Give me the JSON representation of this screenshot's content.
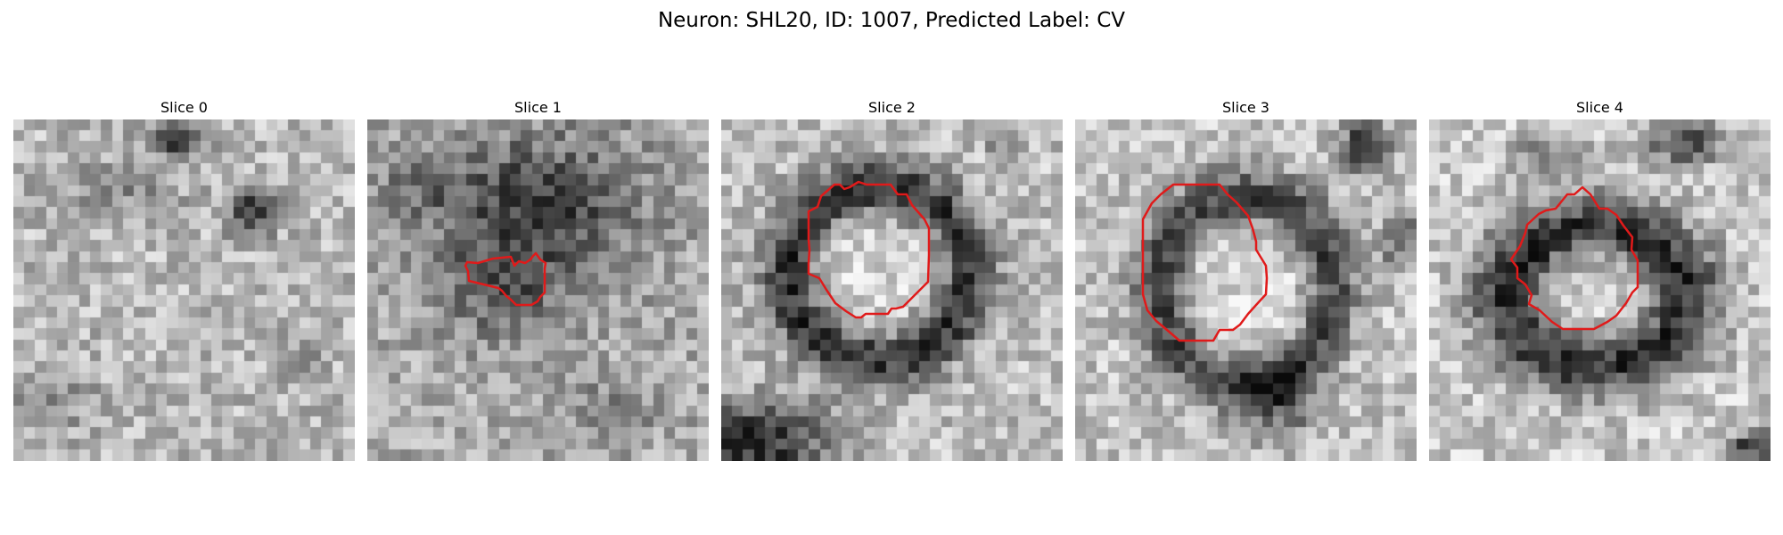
{
  "figure": {
    "title": "Neuron: SHL20, ID: 1007, Predicted Label: CV",
    "contour_color": "#e01a1a"
  },
  "slices": [
    {
      "title": "Slice 0",
      "has_contour": false
    },
    {
      "title": "Slice 1",
      "has_contour": true
    },
    {
      "title": "Slice 2",
      "has_contour": true
    },
    {
      "title": "Slice 3",
      "has_contour": true
    },
    {
      "title": "Slice 4",
      "has_contour": true
    }
  ]
}
